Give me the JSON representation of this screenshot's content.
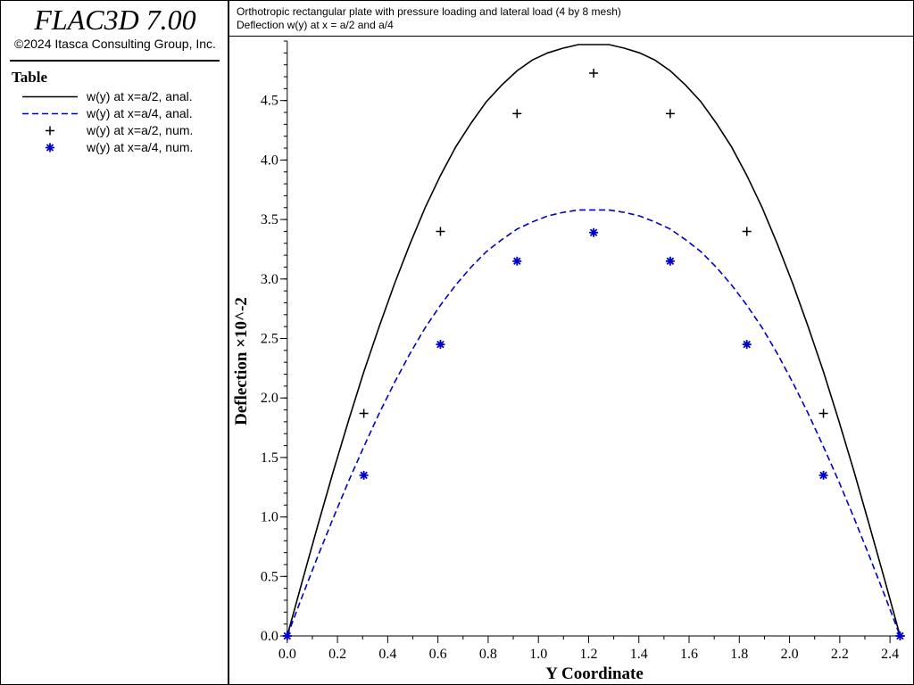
{
  "app": {
    "title": "FLAC3D 7.00",
    "copyright": "©2024 Itasca Consulting Group, Inc."
  },
  "legend": {
    "title": "Table"
  },
  "chart_data": {
    "type": "line",
    "title": "Orthotropic rectangular plate with pressure loading and lateral load (4 by 8 mesh)",
    "subtitle": "Deflection w(y) at x = a/2 and a/4",
    "xlabel": "Y Coordinate",
    "ylabel": "Deflection ×10^-2",
    "xlim": [
      -0.01,
      2.46
    ],
    "ylim": [
      0,
      5.0
    ],
    "xticks": [
      "0.0",
      "0.2",
      "0.4",
      "0.6",
      "0.8",
      "1.0",
      "1.2",
      "1.4",
      "1.6",
      "1.8",
      "2.0",
      "2.2",
      "2.4"
    ],
    "yticks": [
      "0.0",
      "0.5",
      "1.0",
      "1.5",
      "2.0",
      "2.5",
      "3.0",
      "3.5",
      "4.0",
      "4.5"
    ],
    "grid": false,
    "legend_position": "left panel",
    "series": [
      {
        "name": "w(y) at x=a/2, anal.",
        "style": "solid-line",
        "color": "#000000",
        "x": [
          0.0,
          0.061,
          0.122,
          0.183,
          0.244,
          0.305,
          0.366,
          0.427,
          0.488,
          0.549,
          0.61,
          0.671,
          0.732,
          0.793,
          0.854,
          0.915,
          0.976,
          1.037,
          1.098,
          1.159,
          1.22,
          1.281,
          1.342,
          1.403,
          1.464,
          1.525,
          1.586,
          1.647,
          1.708,
          1.769,
          1.83,
          1.891,
          1.952,
          2.013,
          2.074,
          2.135,
          2.196,
          2.257,
          2.318,
          2.379,
          2.44
        ],
        "y": [
          0.0,
          0.47,
          0.93,
          1.38,
          1.81,
          2.22,
          2.6,
          2.96,
          3.29,
          3.6,
          3.87,
          4.11,
          4.31,
          4.49,
          4.63,
          4.75,
          4.84,
          4.9,
          4.94,
          4.97,
          4.97,
          4.97,
          4.94,
          4.9,
          4.84,
          4.75,
          4.63,
          4.49,
          4.31,
          4.11,
          3.87,
          3.6,
          3.29,
          2.96,
          2.6,
          2.22,
          1.81,
          1.38,
          0.93,
          0.47,
          0.0
        ]
      },
      {
        "name": "w(y) at x=a/4, anal.",
        "style": "dashed-line",
        "color": "#0000cc",
        "x": [
          0.0,
          0.061,
          0.122,
          0.183,
          0.244,
          0.305,
          0.366,
          0.427,
          0.488,
          0.549,
          0.61,
          0.671,
          0.732,
          0.793,
          0.854,
          0.915,
          0.976,
          1.037,
          1.098,
          1.159,
          1.22,
          1.281,
          1.342,
          1.403,
          1.464,
          1.525,
          1.586,
          1.647,
          1.708,
          1.769,
          1.83,
          1.891,
          1.952,
          2.013,
          2.074,
          2.135,
          2.196,
          2.257,
          2.318,
          2.379,
          2.44
        ],
        "y": [
          0.0,
          0.34,
          0.67,
          0.99,
          1.3,
          1.59,
          1.87,
          2.13,
          2.37,
          2.59,
          2.78,
          2.95,
          3.1,
          3.23,
          3.33,
          3.42,
          3.48,
          3.53,
          3.56,
          3.58,
          3.58,
          3.58,
          3.56,
          3.53,
          3.48,
          3.42,
          3.33,
          3.23,
          3.1,
          2.95,
          2.78,
          2.59,
          2.37,
          2.13,
          1.87,
          1.59,
          1.3,
          0.99,
          0.67,
          0.34,
          0.0
        ]
      },
      {
        "name": "w(y) at x=a/2, num.",
        "style": "plus-marker",
        "color": "#000000",
        "x": [
          0.0,
          0.305,
          0.61,
          0.915,
          1.22,
          1.525,
          1.83,
          2.135,
          2.44
        ],
        "y": [
          0.0,
          1.87,
          3.4,
          4.39,
          4.73,
          4.39,
          3.4,
          1.87,
          0.0
        ]
      },
      {
        "name": "w(y) at x=a/4, num.",
        "style": "star-marker",
        "color": "#0000cc",
        "x": [
          0.0,
          0.305,
          0.61,
          0.915,
          1.22,
          1.525,
          1.83,
          2.135,
          2.44
        ],
        "y": [
          0.0,
          1.35,
          2.45,
          3.15,
          3.39,
          3.15,
          2.45,
          1.35,
          0.0
        ]
      }
    ]
  }
}
